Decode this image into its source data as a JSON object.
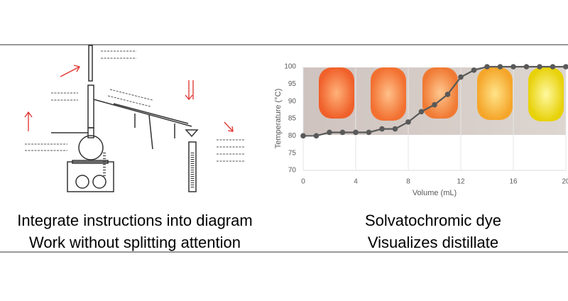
{
  "captions": {
    "left": [
      "Integrate instructions into diagram",
      "Work without splitting attention"
    ],
    "right": [
      "Solvatochromic dye",
      "Visualizes distillate"
    ]
  },
  "chart_data": {
    "type": "line",
    "x_label": "Volume (mL)",
    "y_label": "Temperature (°C)",
    "x": [
      0,
      1,
      2,
      3,
      4,
      5,
      6,
      7,
      8,
      9,
      10,
      11,
      12,
      13,
      14,
      15,
      16,
      17,
      18,
      19,
      20
    ],
    "values": [
      80,
      80,
      81,
      81,
      81,
      81,
      82,
      82,
      84,
      87,
      89,
      92,
      97,
      99,
      100,
      100,
      100,
      100,
      100,
      100,
      100
    ],
    "color": "#595959",
    "xlim": [
      0,
      20
    ],
    "xticks": [
      0,
      4,
      8,
      12,
      16,
      20
    ],
    "ylim": [
      70,
      100
    ],
    "yticks": [
      70,
      75,
      80,
      85,
      90,
      95,
      100
    ],
    "grid": "x"
  }
}
